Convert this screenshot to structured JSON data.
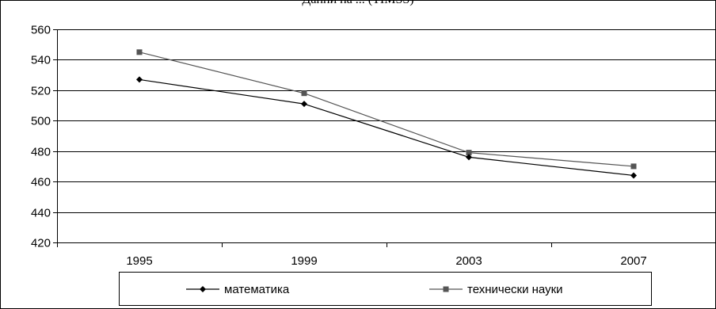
{
  "chart_data": {
    "type": "line",
    "title": "Данни на ... (TIMSS)",
    "categories": [
      "1995",
      "1999",
      "2003",
      "2007"
    ],
    "series": [
      {
        "name": "математика",
        "values": [
          527,
          511,
          476,
          464
        ],
        "color": "#000000",
        "marker": "diamond"
      },
      {
        "name": "технически науки",
        "values": [
          545,
          518,
          479,
          470
        ],
        "color": "#555555",
        "marker": "square"
      }
    ],
    "ylim": [
      420,
      560
    ],
    "yticks": [
      420,
      440,
      460,
      480,
      500,
      520,
      540,
      560
    ],
    "grid": true,
    "legend": "bottom",
    "xlabel": "",
    "ylabel": ""
  }
}
